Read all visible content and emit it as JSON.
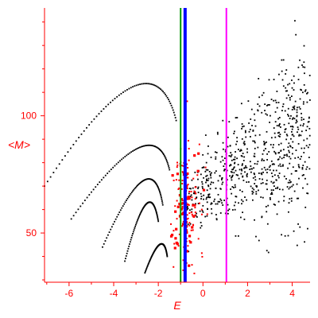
{
  "chart_data": {
    "type": "scatter",
    "xlabel": "E",
    "ylabel": "<M>",
    "xlim": [
      -7.1,
      4.8
    ],
    "ylim": [
      29,
      146
    ],
    "xticks": [
      -6,
      -4,
      -2,
      0,
      2,
      4
    ],
    "yticks": [
      50,
      100
    ],
    "grid": false,
    "colors": {
      "axis": "#ff0000",
      "tick_labels": "#ff0000",
      "black_points": "#000000",
      "red_points": "#ff0000",
      "green_line": "#009900",
      "blue_line": "#0000ff",
      "magenta_line": "#ff00ff"
    },
    "vertical_lines": [
      {
        "x": -1.0,
        "color": "#009900",
        "width": 2
      },
      {
        "x": -0.8,
        "color": "#0000ff",
        "width": 4
      },
      {
        "x": 1.05,
        "color": "#ff00ff",
        "width": 2
      }
    ],
    "curves": [
      {
        "x0": -7.1,
        "y0": 70,
        "x1": -2.3,
        "y1": 112,
        "x2": -1.2,
        "y2": 98
      },
      {
        "x0": -5.9,
        "y0": 56,
        "x1": -2.2,
        "y1": 86,
        "x2": -1.5,
        "y2": 77
      },
      {
        "x0": -4.5,
        "y0": 44,
        "x1": -2.3,
        "y1": 72,
        "x2": -1.8,
        "y2": 62
      },
      {
        "x0": -3.5,
        "y0": 38,
        "x1": -2.4,
        "y1": 62,
        "x2": -2.0,
        "y2": 55
      },
      {
        "x0": -2.6,
        "y0": 33,
        "x1": -1.8,
        "y1": 45,
        "x2": -1.6,
        "y2": 40
      }
    ],
    "scatter_black": {
      "count": 700,
      "x_range": [
        -0.8,
        4.8
      ],
      "center_start": 62,
      "center_slope": 6,
      "spread_start": 8,
      "spread_slope": 3.5
    },
    "scatter_red": {
      "count": 170,
      "x_center": -0.8,
      "x_spread": 0.6,
      "y_center": 62,
      "y_spread": 14
    }
  }
}
